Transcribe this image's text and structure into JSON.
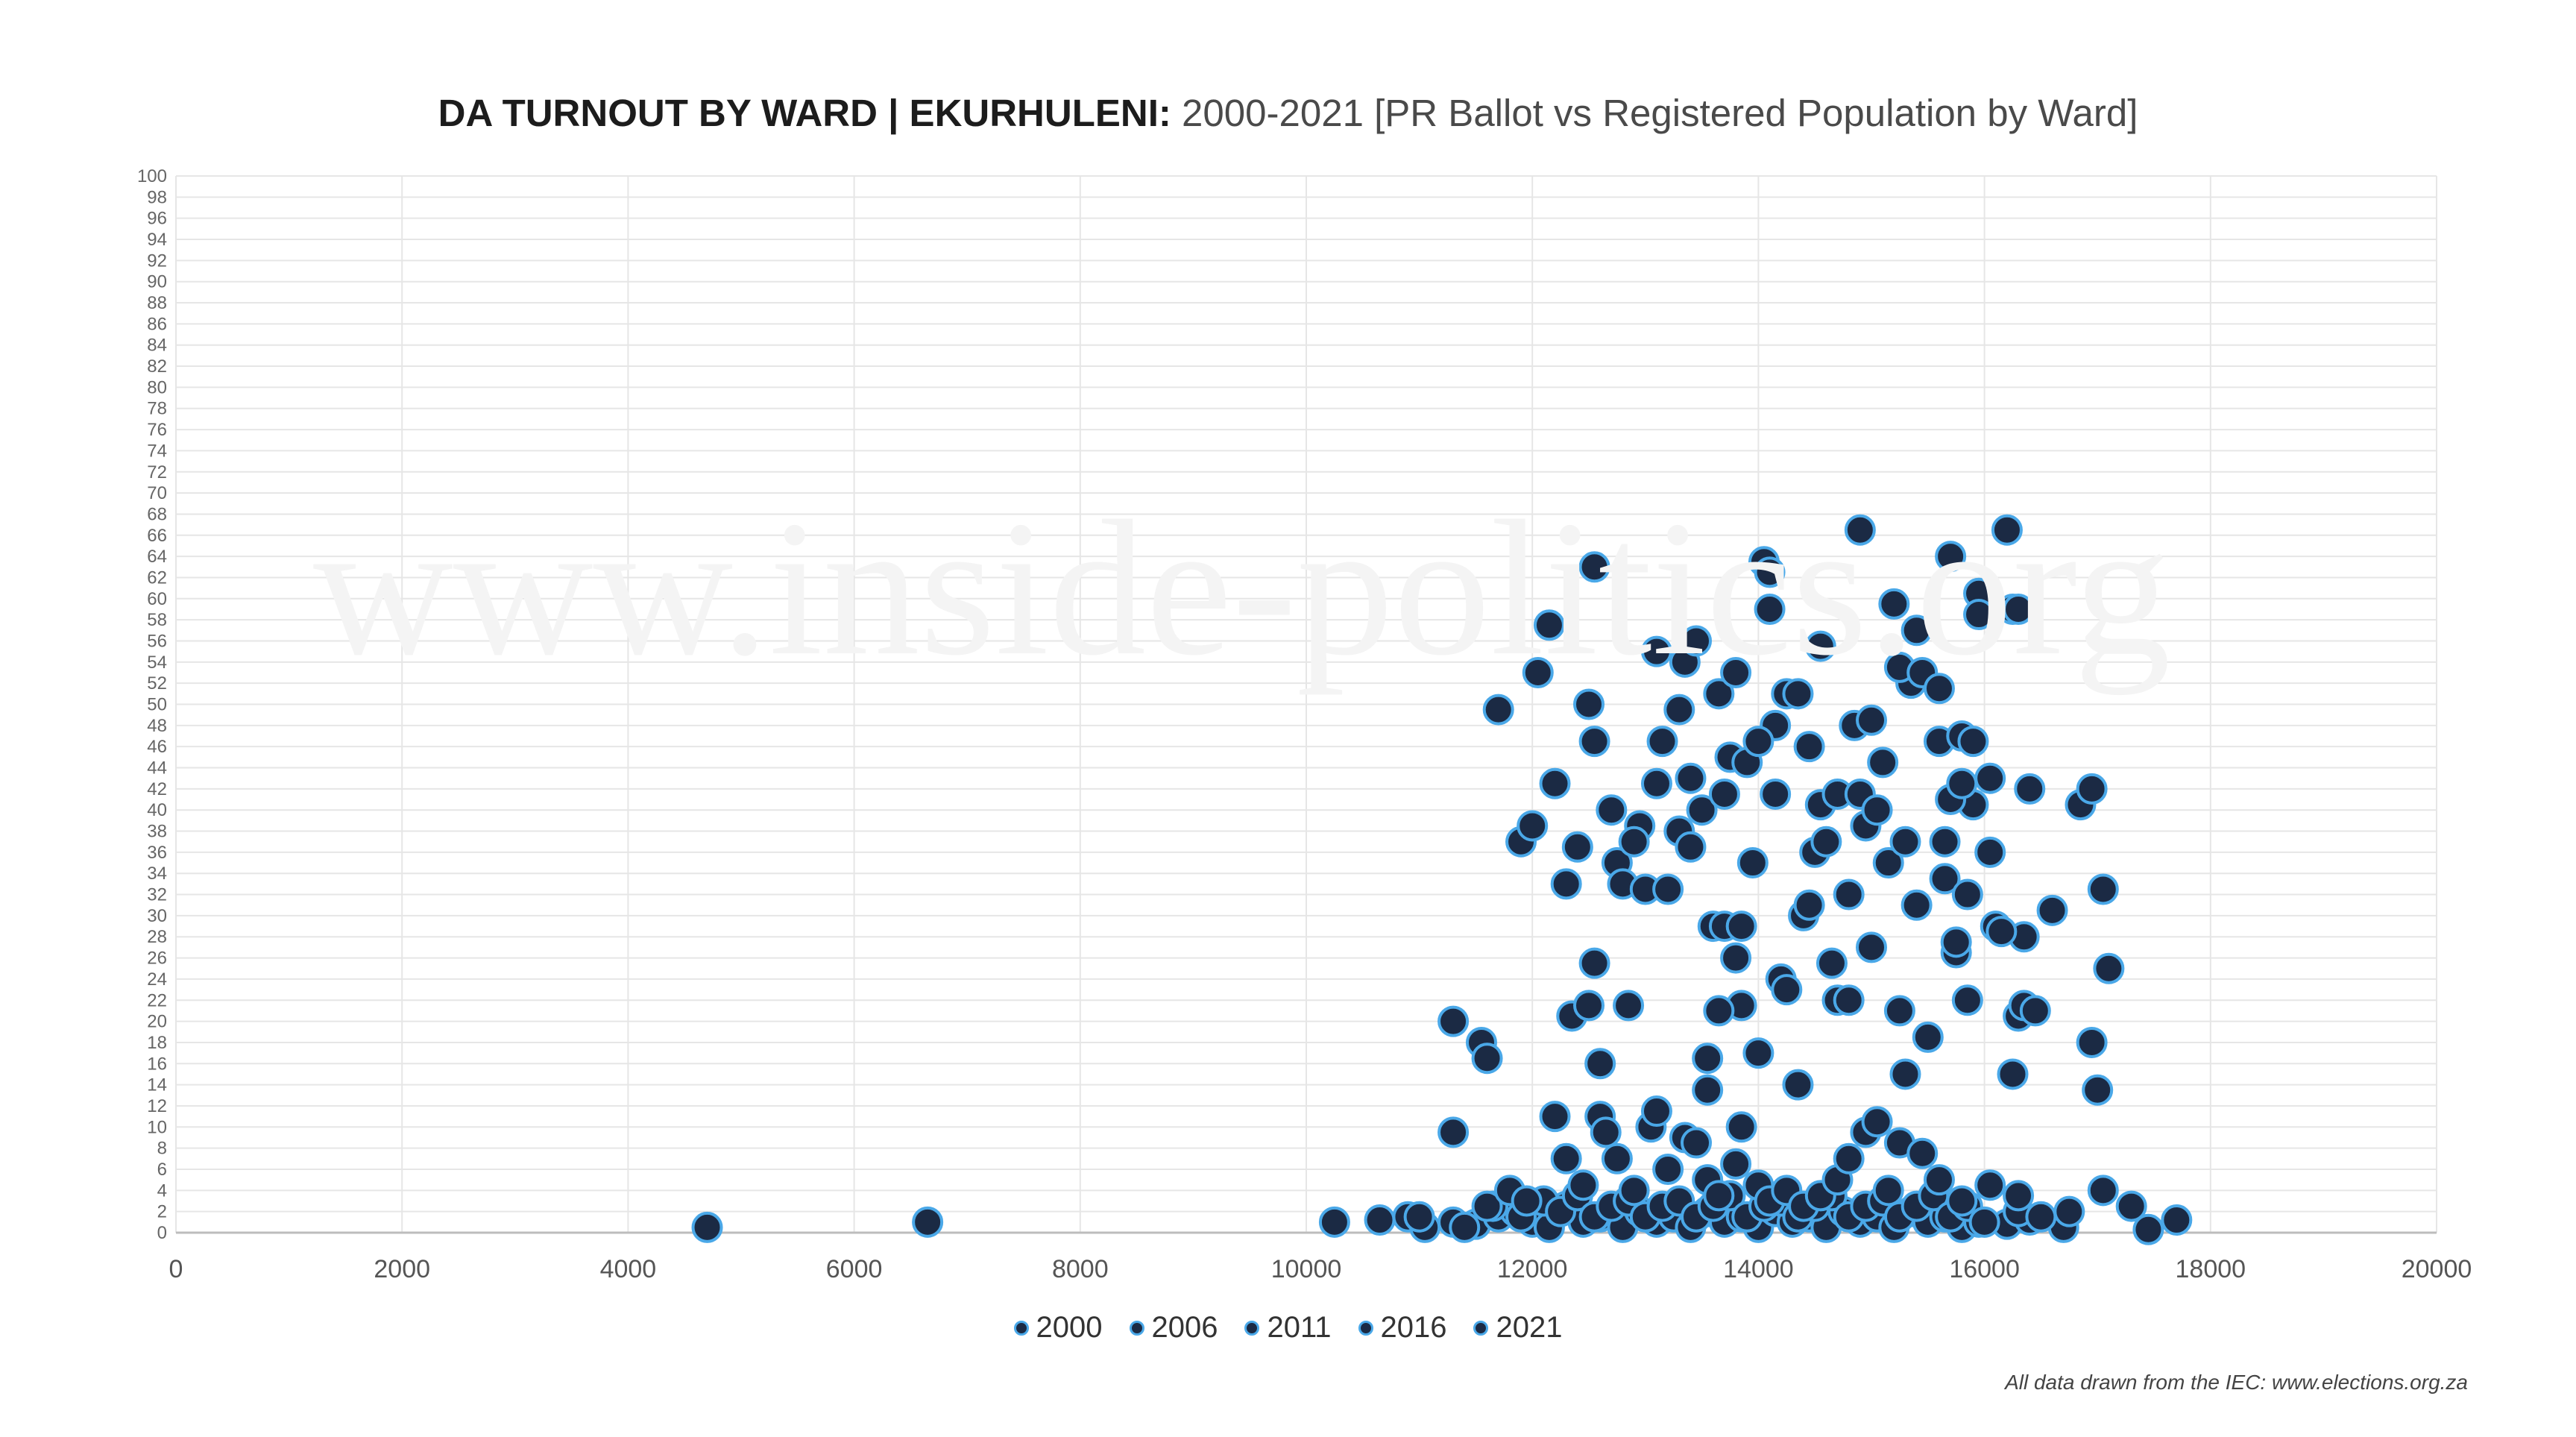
{
  "title_bold": "DA TURNOUT BY WARD | EKURHULENI:",
  "title_rest": "2000-2021 [PR Ballot vs Registered Population by Ward]",
  "watermark": "www.inside-politics.org",
  "source_note": "All data drawn from the IEC: www.elections.org.za",
  "colors": {
    "marker_fill": "#1b2a44",
    "marker_stroke": "#4aa8e8",
    "grid": "#e6e6e6",
    "axis": "#bdbdbd"
  },
  "chart_data": {
    "type": "scatter",
    "title": "DA TURNOUT BY WARD | EKURHULENI: 2000-2021 [PR Ballot vs Registered Population by Ward]",
    "xlim": [
      0,
      20000
    ],
    "ylim": [
      0,
      100
    ],
    "x_ticks": [
      0,
      2000,
      4000,
      6000,
      8000,
      10000,
      12000,
      14000,
      16000,
      18000,
      20000
    ],
    "y_ticks": [
      0,
      2,
      4,
      6,
      8,
      10,
      12,
      14,
      16,
      18,
      20,
      22,
      24,
      26,
      28,
      30,
      32,
      34,
      36,
      38,
      40,
      42,
      44,
      46,
      48,
      50,
      52,
      54,
      56,
      58,
      60,
      62,
      64,
      66,
      68,
      70,
      72,
      74,
      76,
      78,
      80,
      82,
      84,
      86,
      88,
      90,
      92,
      94,
      96,
      98,
      100
    ],
    "grid": true,
    "legend_position": "bottom",
    "legend": [
      "2000",
      "2006",
      "2011",
      "2016",
      "2021"
    ],
    "series": [
      {
        "name": "2000",
        "points": [
          [
            4700,
            0.5
          ],
          [
            6650,
            1
          ],
          [
            10250,
            1
          ],
          [
            10650,
            1.2
          ],
          [
            10900,
            1.5
          ],
          [
            11050,
            0.5
          ],
          [
            11300,
            1
          ],
          [
            11500,
            0.8
          ],
          [
            11700,
            1.5
          ],
          [
            11850,
            2
          ],
          [
            12000,
            1
          ],
          [
            12150,
            0.5
          ],
          [
            12300,
            2.5
          ],
          [
            12450,
            1
          ],
          [
            12600,
            1.5
          ],
          [
            12800,
            0.5
          ],
          [
            12950,
            2
          ],
          [
            13100,
            1
          ],
          [
            13250,
            1.5
          ],
          [
            13400,
            0.5
          ],
          [
            13550,
            2
          ],
          [
            13700,
            1
          ],
          [
            13850,
            1.5
          ],
          [
            14000,
            0.5
          ],
          [
            14150,
            2
          ],
          [
            14300,
            1
          ],
          [
            14450,
            1.5
          ],
          [
            14600,
            0.5
          ],
          [
            14750,
            2
          ],
          [
            14900,
            1
          ],
          [
            15050,
            1.5
          ],
          [
            15200,
            0.5
          ],
          [
            15350,
            2
          ],
          [
            15500,
            1
          ],
          [
            15650,
            1.5
          ],
          [
            15800,
            0.5
          ],
          [
            15950,
            1
          ],
          [
            16200,
            0.8
          ],
          [
            16400,
            1.2
          ],
          [
            16700,
            0.5
          ]
        ]
      },
      {
        "name": "2006",
        "points": [
          [
            11000,
            1.5
          ],
          [
            11400,
            0.5
          ],
          [
            11650,
            2.5
          ],
          [
            11900,
            1.5
          ],
          [
            12100,
            3
          ],
          [
            12250,
            2
          ],
          [
            12400,
            3.5
          ],
          [
            12550,
            1.5
          ],
          [
            12700,
            2.5
          ],
          [
            12850,
            3
          ],
          [
            13000,
            1.5
          ],
          [
            13150,
            2.5
          ],
          [
            13300,
            3
          ],
          [
            13450,
            1.5
          ],
          [
            13600,
            2.5
          ],
          [
            13750,
            3.5
          ],
          [
            13900,
            1.5
          ],
          [
            14050,
            2.5
          ],
          [
            14200,
            3
          ],
          [
            14350,
            1.5
          ],
          [
            14500,
            2.5
          ],
          [
            14650,
            3.5
          ],
          [
            14800,
            1.5
          ],
          [
            14950,
            2.5
          ],
          [
            15100,
            3
          ],
          [
            15250,
            1.5
          ],
          [
            15400,
            2.5
          ],
          [
            15550,
            3.5
          ],
          [
            15700,
            1.5
          ],
          [
            15850,
            2.5
          ],
          [
            16000,
            1
          ],
          [
            16300,
            2
          ],
          [
            16500,
            1.5
          ],
          [
            16750,
            2
          ],
          [
            17300,
            2.5
          ],
          [
            17450,
            0.3
          ],
          [
            17700,
            1.2
          ]
        ]
      },
      {
        "name": "2011",
        "points": [
          [
            11300,
            9.5
          ],
          [
            11600,
            2.5
          ],
          [
            11800,
            4
          ],
          [
            11950,
            3
          ],
          [
            12200,
            11
          ],
          [
            12300,
            7
          ],
          [
            12450,
            4.5
          ],
          [
            12600,
            11
          ],
          [
            12650,
            9.5
          ],
          [
            12750,
            7
          ],
          [
            12900,
            4
          ],
          [
            13050,
            10
          ],
          [
            13100,
            11.5
          ],
          [
            13200,
            6
          ],
          [
            13350,
            9
          ],
          [
            13450,
            8.5
          ],
          [
            13550,
            5
          ],
          [
            13650,
            3.5
          ],
          [
            13800,
            6.5
          ],
          [
            13850,
            10
          ],
          [
            14000,
            4.5
          ],
          [
            14100,
            3
          ],
          [
            14250,
            4
          ],
          [
            14400,
            2.5
          ],
          [
            14550,
            3.5
          ],
          [
            14700,
            5
          ],
          [
            14800,
            7
          ],
          [
            14950,
            9.5
          ],
          [
            15050,
            10.5
          ],
          [
            15150,
            4
          ],
          [
            15250,
            8.5
          ],
          [
            15450,
            7.5
          ],
          [
            15600,
            5
          ],
          [
            15800,
            3
          ],
          [
            16050,
            4.5
          ],
          [
            16300,
            3.5
          ],
          [
            17050,
            4
          ]
        ]
      },
      {
        "name": "2016",
        "points": [
          [
            11300,
            20
          ],
          [
            11550,
            18
          ],
          [
            11600,
            16.5
          ],
          [
            11700,
            49.5
          ],
          [
            11900,
            37
          ],
          [
            12000,
            38.5
          ],
          [
            12050,
            53
          ],
          [
            12150,
            57.5
          ],
          [
            12200,
            42.5
          ],
          [
            12300,
            33
          ],
          [
            12350,
            20.5
          ],
          [
            12500,
            21.5
          ],
          [
            12500,
            50
          ],
          [
            12550,
            25.5
          ],
          [
            12550,
            63
          ],
          [
            12600,
            16
          ],
          [
            12700,
            40
          ],
          [
            12750,
            35
          ],
          [
            12800,
            33
          ],
          [
            12850,
            21.5
          ],
          [
            12950,
            38.5
          ],
          [
            13000,
            32.5
          ],
          [
            13100,
            55
          ],
          [
            13150,
            46.5
          ],
          [
            13200,
            32.5
          ],
          [
            13300,
            49.5
          ],
          [
            13350,
            54
          ],
          [
            13400,
            43
          ],
          [
            13450,
            56
          ],
          [
            13500,
            40
          ],
          [
            13550,
            16.5
          ],
          [
            13600,
            29
          ],
          [
            13650,
            51
          ],
          [
            13700,
            41.5
          ],
          [
            13750,
            45
          ],
          [
            13800,
            26
          ],
          [
            13850,
            21.5
          ],
          [
            13900,
            44.5
          ],
          [
            13950,
            35
          ],
          [
            14000,
            17
          ],
          [
            14050,
            63.5
          ],
          [
            14100,
            59
          ],
          [
            14150,
            48
          ],
          [
            14200,
            24
          ],
          [
            14250,
            51
          ],
          [
            14350,
            14
          ],
          [
            14400,
            30
          ],
          [
            14450,
            46
          ],
          [
            14500,
            36
          ],
          [
            14550,
            55.5
          ],
          [
            14650,
            25.5
          ],
          [
            14700,
            22
          ],
          [
            14800,
            32
          ],
          [
            14850,
            48
          ],
          [
            14900,
            66.5
          ],
          [
            14950,
            38.5
          ],
          [
            15000,
            27
          ],
          [
            15100,
            44.5
          ],
          [
            15150,
            35
          ],
          [
            15200,
            59.5
          ],
          [
            15250,
            21
          ],
          [
            15300,
            15
          ],
          [
            15350,
            52
          ],
          [
            15400,
            57
          ],
          [
            15500,
            18.5
          ],
          [
            15600,
            46.5
          ],
          [
            15650,
            37
          ],
          [
            15700,
            64
          ],
          [
            15750,
            26.5
          ],
          [
            15800,
            47
          ],
          [
            15850,
            22
          ],
          [
            15900,
            40.5
          ],
          [
            15950,
            60.5
          ],
          [
            16050,
            36
          ],
          [
            16100,
            29
          ],
          [
            16200,
            66.5
          ],
          [
            16250,
            59
          ],
          [
            16300,
            20.5
          ],
          [
            16350,
            28
          ],
          [
            16400,
            42
          ],
          [
            16600,
            30.5
          ],
          [
            16850,
            40.5
          ],
          [
            16950,
            42
          ],
          [
            16950,
            18
          ],
          [
            17000,
            13.5
          ],
          [
            17050,
            32.5
          ],
          [
            17100,
            25
          ]
        ]
      },
      {
        "name": "2021",
        "points": [
          [
            12400,
            36.5
          ],
          [
            12550,
            46.5
          ],
          [
            12900,
            37
          ],
          [
            13100,
            42.5
          ],
          [
            13300,
            38
          ],
          [
            13400,
            36.5
          ],
          [
            13550,
            13.5
          ],
          [
            13650,
            21
          ],
          [
            13700,
            29
          ],
          [
            13800,
            53
          ],
          [
            13850,
            29
          ],
          [
            14000,
            46.5
          ],
          [
            14100,
            62.5
          ],
          [
            14150,
            41.5
          ],
          [
            14250,
            23
          ],
          [
            14350,
            51
          ],
          [
            14450,
            31
          ],
          [
            14550,
            40.5
          ],
          [
            14600,
            37
          ],
          [
            14700,
            41.5
          ],
          [
            14800,
            22
          ],
          [
            14900,
            41.5
          ],
          [
            15000,
            48.5
          ],
          [
            15050,
            40
          ],
          [
            15250,
            53.5
          ],
          [
            15300,
            37
          ],
          [
            15400,
            31
          ],
          [
            15450,
            53
          ],
          [
            15600,
            51.5
          ],
          [
            15650,
            33.5
          ],
          [
            15700,
            41
          ],
          [
            15750,
            27.5
          ],
          [
            15800,
            42.5
          ],
          [
            15850,
            32
          ],
          [
            15900,
            46.5
          ],
          [
            15950,
            58.5
          ],
          [
            16050,
            43
          ],
          [
            16150,
            28.5
          ],
          [
            16250,
            15
          ],
          [
            16300,
            59
          ],
          [
            16350,
            21.5
          ],
          [
            16450,
            21
          ]
        ]
      }
    ]
  }
}
